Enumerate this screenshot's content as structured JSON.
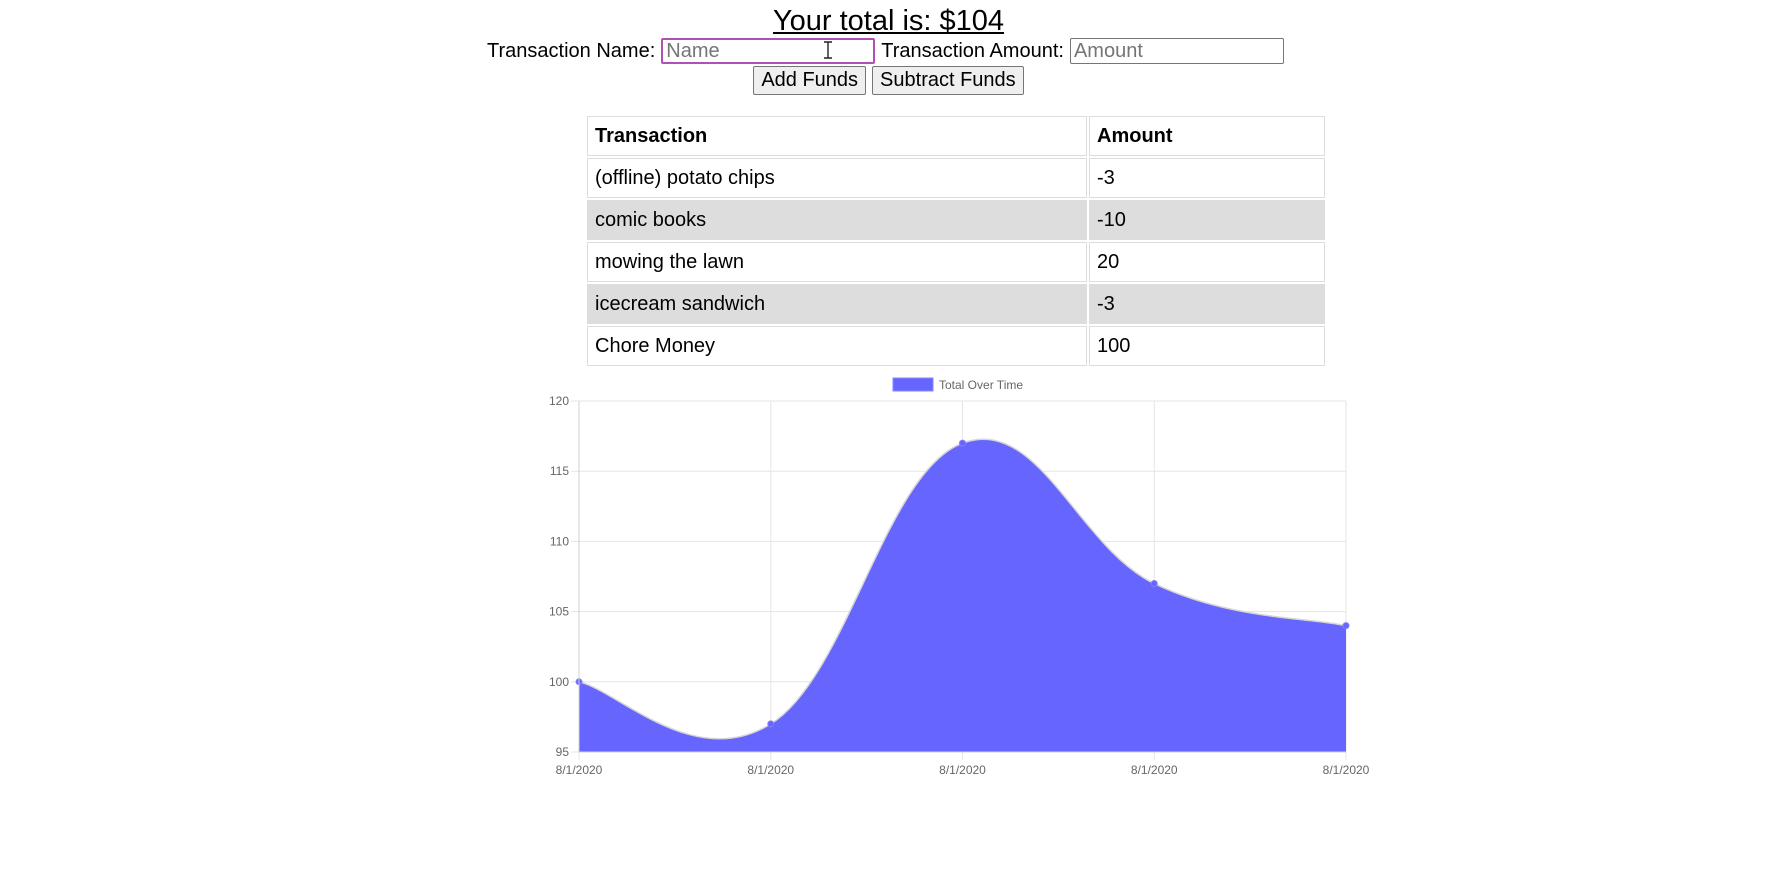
{
  "header": {
    "total_text": "Your total is: $104"
  },
  "form": {
    "name_label": "Transaction Name:",
    "name_placeholder": "Name",
    "name_value": "",
    "amount_label": "Transaction Amount:",
    "amount_placeholder": "Amount",
    "amount_value": "",
    "add_label": "Add Funds",
    "subtract_label": "Subtract Funds"
  },
  "table": {
    "headers": [
      "Transaction",
      "Amount"
    ],
    "rows": [
      {
        "name": "(offline) potato chips",
        "amount": "-3"
      },
      {
        "name": "comic books",
        "amount": "-10"
      },
      {
        "name": "mowing the lawn",
        "amount": "20"
      },
      {
        "name": "icecream sandwich",
        "amount": "-3"
      },
      {
        "name": "Chore Money",
        "amount": "100"
      }
    ]
  },
  "chart_data": {
    "type": "area",
    "title": "",
    "legend": [
      "Total Over Time"
    ],
    "legend_position": "top",
    "categories": [
      "8/1/2020",
      "8/1/2020",
      "8/1/2020",
      "8/1/2020",
      "8/1/2020"
    ],
    "series": [
      {
        "name": "Total Over Time",
        "values": [
          100,
          97,
          117,
          107,
          104
        ],
        "color": "#6666ff"
      }
    ],
    "ylim": [
      95,
      120
    ],
    "yticks": [
      95,
      100,
      105,
      110,
      115,
      120
    ],
    "grid": true,
    "xlabel": "",
    "ylabel": ""
  },
  "colors": {
    "fill": "#6666ff",
    "grid": "#e5e5e5",
    "row_alt": "#dddddd",
    "focus_border": "#b04fb5"
  }
}
